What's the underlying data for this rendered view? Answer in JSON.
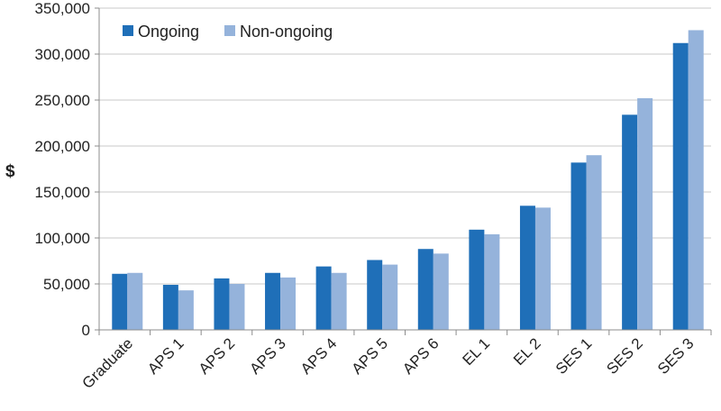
{
  "chart_data": {
    "type": "bar",
    "title": "",
    "xlabel": "",
    "ylabel": "$",
    "ylim": [
      0,
      350000
    ],
    "yticks": [
      0,
      50000,
      100000,
      150000,
      200000,
      250000,
      300000,
      350000
    ],
    "ytick_labels": [
      "0",
      "50,000",
      "100,000",
      "150,000",
      "200,000",
      "250,000",
      "300,000",
      "350,000"
    ],
    "grid": true,
    "legend": "top-left",
    "categories": [
      "Graduate",
      "APS 1",
      "APS 2",
      "APS 3",
      "APS 4",
      "APS 5",
      "APS 6",
      "EL 1",
      "EL 2",
      "SES 1",
      "SES 2",
      "SES 3"
    ],
    "series": [
      {
        "name": "Ongoing",
        "color": "#1f6fb8",
        "values": [
          61000,
          49000,
          56000,
          62000,
          69000,
          76000,
          88000,
          109000,
          135000,
          182000,
          234000,
          312000
        ]
      },
      {
        "name": "Non-ongoing",
        "color": "#95b3db",
        "values": [
          62000,
          43000,
          50000,
          57000,
          62000,
          71000,
          83000,
          104000,
          133000,
          190000,
          252000,
          326000
        ]
      }
    ]
  }
}
